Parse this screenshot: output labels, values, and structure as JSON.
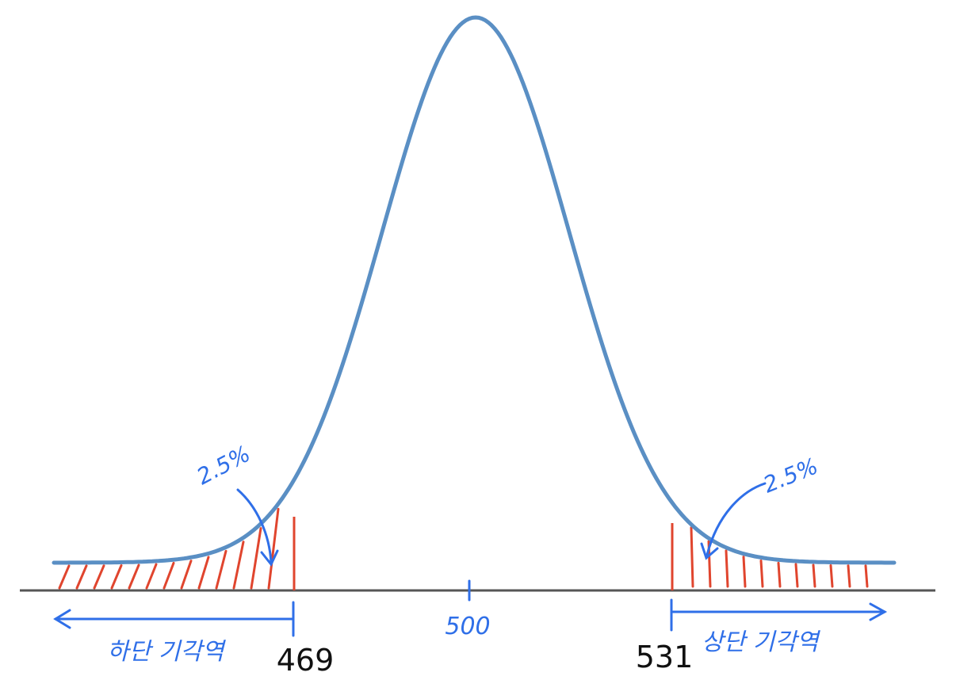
{
  "diagram": {
    "mean_label": "500",
    "lower_cutoff_label": "469",
    "upper_cutoff_label": "531",
    "lower_region_label": "하단 기각역",
    "upper_region_label": "상단 기각역",
    "lower_tail_pct": "2.5%",
    "upper_tail_pct": "2.5%",
    "colors": {
      "curve": "#5a8fc4",
      "axis": "#555555",
      "rejection": "#e0452e",
      "annotation": "#2f6fe8",
      "cutoff_text": "#111111"
    }
  }
}
